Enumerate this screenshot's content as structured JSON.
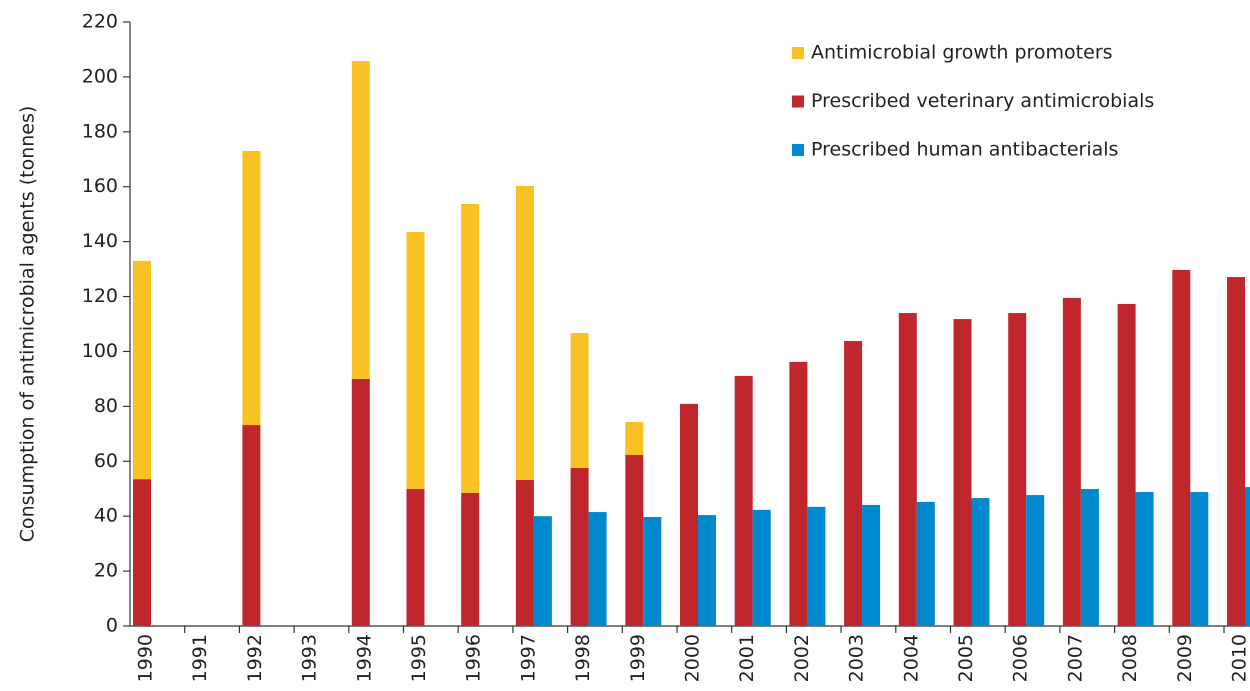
{
  "chart_data": {
    "type": "bar",
    "y_label": "Consumption of antimicrobial  agents (tonnes)",
    "categories": [
      "1990",
      "1991",
      "1992",
      "1993",
      "1994",
      "1995",
      "1996",
      "1997",
      "1998",
      "1999",
      "2000",
      "2001",
      "2002",
      "2003",
      "2004",
      "2005",
      "2006",
      "2007",
      "2008",
      "2009",
      "2010"
    ],
    "series": [
      {
        "name": "Antimicrobial growth promoters",
        "color": "#f8c124",
        "values": [
          79.5,
          null,
          99.8,
          null,
          115.8,
          93.6,
          105.2,
          107.1,
          49.1,
          12,
          null,
          null,
          null,
          null,
          null,
          null,
          null,
          null,
          null,
          null,
          null
        ]
      },
      {
        "name": "Prescribed veterinary antimicrobials",
        "color": "#c0272d",
        "values": [
          53.5,
          null,
          73.2,
          null,
          90,
          49.9,
          48.5,
          53.2,
          57.6,
          62.3,
          80.9,
          91.1,
          96.2,
          103.8,
          114,
          111.8,
          114,
          119.5,
          117.3,
          129.7,
          127.1
        ]
      },
      {
        "name": "Prescribed human antibacterials",
        "color": "#0089cf",
        "values": [
          null,
          null,
          null,
          null,
          null,
          null,
          null,
          40,
          41.5,
          39.7,
          40.4,
          42.3,
          43.4,
          44.1,
          45.2,
          46.6,
          47.7,
          49.9,
          48.8,
          48.8,
          50.6
        ]
      }
    ],
    "ylim": [
      0,
      220
    ],
    "yticks": [
      0,
      20,
      40,
      60,
      80,
      100,
      120,
      140,
      160,
      180,
      200,
      220
    ],
    "legend": "upper right"
  }
}
